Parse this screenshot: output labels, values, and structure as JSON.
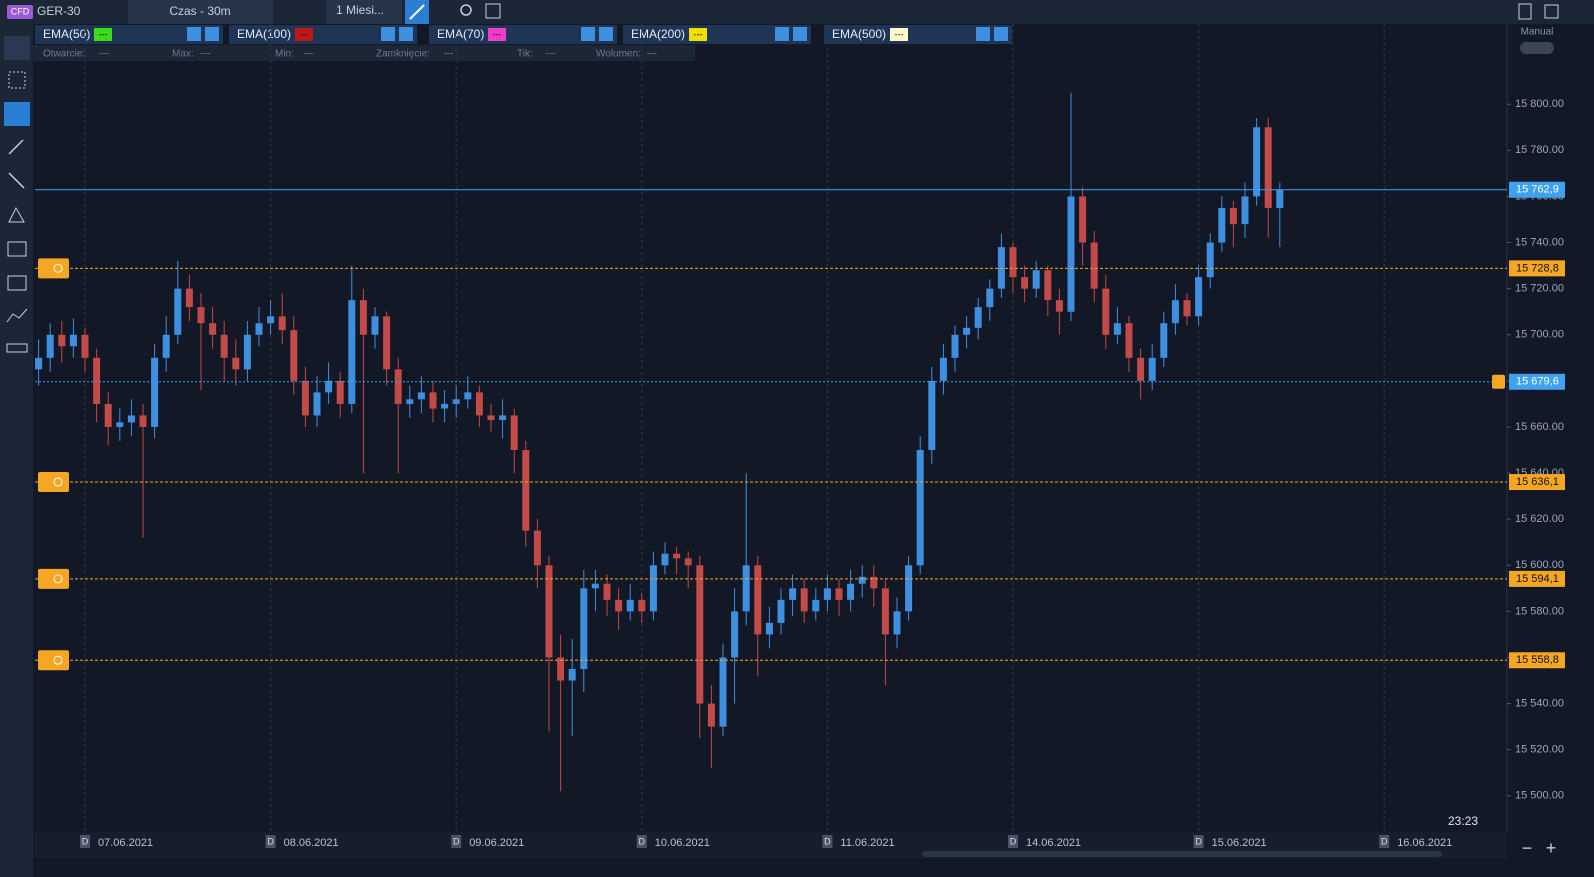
{
  "toolbar": {
    "badge": "CFD",
    "symbol": "GER-30",
    "interval": "Czas - 30m",
    "range": "1 Miesi..."
  },
  "indicators": [
    {
      "name": "EMA(50)",
      "value": "---",
      "color": "#3ddc1a"
    },
    {
      "name": "EMA(100)",
      "value": "---",
      "color": "#c01818"
    },
    {
      "name": "EMA(70)",
      "value": "---",
      "color": "#f03cc8"
    },
    {
      "name": "EMA(200)",
      "value": "---",
      "color": "#f0e000"
    },
    {
      "name": "EMA(500)",
      "value": "---",
      "color": "#fff8c8"
    }
  ],
  "info": [
    {
      "label": "Otwarcie:",
      "value": "---"
    },
    {
      "label": "Max:",
      "value": "---"
    },
    {
      "label": "Min:",
      "value": "---"
    },
    {
      "label": "Zamknięcie:",
      "value": "---"
    },
    {
      "label": "Tik:",
      "value": "---"
    },
    {
      "label": "Wolumen:",
      "value": "---"
    }
  ],
  "mode": "Manual",
  "clock": "23:23",
  "chart_data": {
    "type": "candlestick",
    "up_color": "#3f8fe0",
    "down_color": "#c24a48",
    "ylim": [
      15484.3,
      15834.8
    ],
    "yticks": [
      {
        "value": 15500,
        "label": "15 500.00"
      },
      {
        "value": 15520,
        "label": "15 520.00"
      },
      {
        "value": 15540,
        "label": "15 540.00"
      },
      {
        "value": 15560,
        "label": "15 560.00"
      },
      {
        "value": 15580,
        "label": "15 580.00"
      },
      {
        "value": 15600,
        "label": "15 600.00"
      },
      {
        "value": 15620,
        "label": "15 620.00"
      },
      {
        "value": 15640,
        "label": "15 640.00"
      },
      {
        "value": 15660,
        "label": "15 660.00"
      },
      {
        "value": 15680,
        "label": "15 680.00"
      },
      {
        "value": 15700,
        "label": "15 700.00"
      },
      {
        "value": 15720,
        "label": "15 720.00"
      },
      {
        "value": 15740,
        "label": "15 740.00"
      },
      {
        "value": 15760,
        "label": "15 760.00"
      },
      {
        "value": 15780,
        "label": "15 780.00"
      },
      {
        "value": 15800,
        "label": "15 800.00"
      }
    ],
    "dates": [
      "07.06.2021",
      "08.06.2021",
      "09.06.2021",
      "10.06.2021",
      "11.06.2021",
      "14.06.2021",
      "15.06.2021",
      "16.06.2021"
    ],
    "levels": [
      {
        "value": 15762.9,
        "label": "15 762,9",
        "style": "current"
      },
      {
        "value": 15728.8,
        "label": "15 728,8",
        "style": "alert"
      },
      {
        "value": 15679.6,
        "label": "15 679,6",
        "style": "pending"
      },
      {
        "value": 15636.1,
        "label": "15 636,1",
        "style": "alert"
      },
      {
        "value": 15594.1,
        "label": "15 594,1",
        "style": "alert"
      },
      {
        "value": 15558.8,
        "label": "15 558,8",
        "style": "alert"
      }
    ],
    "ohlc": [
      [
        15685,
        15698,
        15678,
        15690
      ],
      [
        15690,
        15705,
        15684,
        15700
      ],
      [
        15700,
        15706,
        15688,
        15695
      ],
      [
        15695,
        15707,
        15690,
        15700
      ],
      [
        15700,
        15703,
        15684,
        15690
      ],
      [
        15690,
        15694,
        15662,
        15670
      ],
      [
        15670,
        15675,
        15652,
        15660
      ],
      [
        15660,
        15668,
        15654,
        15662
      ],
      [
        15662,
        15672,
        15656,
        15665
      ],
      [
        15665,
        15670,
        15612,
        15660
      ],
      [
        15660,
        15696,
        15655,
        15690
      ],
      [
        15690,
        15708,
        15684,
        15700
      ],
      [
        15700,
        15732,
        15696,
        15720
      ],
      [
        15720,
        15726,
        15706,
        15712
      ],
      [
        15712,
        15718,
        15676,
        15705
      ],
      [
        15705,
        15712,
        15694,
        15700
      ],
      [
        15700,
        15706,
        15680,
        15690
      ],
      [
        15690,
        15698,
        15678,
        15685
      ],
      [
        15685,
        15706,
        15680,
        15700
      ],
      [
        15700,
        15712,
        15695,
        15705
      ],
      [
        15705,
        15715,
        15700,
        15708
      ],
      [
        15708,
        15718,
        15696,
        15702
      ],
      [
        15702,
        15708,
        15674,
        15680
      ],
      [
        15680,
        15686,
        15660,
        15665
      ],
      [
        15665,
        15682,
        15660,
        15675
      ],
      [
        15675,
        15688,
        15670,
        15680
      ],
      [
        15680,
        15684,
        15664,
        15670
      ],
      [
        15670,
        15730,
        15666,
        15715
      ],
      [
        15715,
        15720,
        15640,
        15700
      ],
      [
        15700,
        15712,
        15694,
        15708
      ],
      [
        15708,
        15710,
        15678,
        15685
      ],
      [
        15685,
        15690,
        15640,
        15670
      ],
      [
        15670,
        15678,
        15664,
        15672
      ],
      [
        15672,
        15682,
        15666,
        15675
      ],
      [
        15675,
        15680,
        15662,
        15668
      ],
      [
        15668,
        15676,
        15662,
        15670
      ],
      [
        15670,
        15678,
        15664,
        15672
      ],
      [
        15672,
        15682,
        15668,
        15675
      ],
      [
        15675,
        15678,
        15660,
        15665
      ],
      [
        15665,
        15670,
        15658,
        15663
      ],
      [
        15663,
        15672,
        15655,
        15665
      ],
      [
        15665,
        15668,
        15640,
        15650
      ],
      [
        15650,
        15654,
        15608,
        15615
      ],
      [
        15615,
        15620,
        15590,
        15600
      ],
      [
        15600,
        15604,
        15528,
        15560
      ],
      [
        15560,
        15570,
        15502,
        15550
      ],
      [
        15550,
        15568,
        15526,
        15555
      ],
      [
        15555,
        15598,
        15545,
        15590
      ],
      [
        15590,
        15598,
        15580,
        15592
      ],
      [
        15592,
        15596,
        15578,
        15585
      ],
      [
        15585,
        15590,
        15572,
        15580
      ],
      [
        15580,
        15592,
        15576,
        15585
      ],
      [
        15585,
        15588,
        15575,
        15580
      ],
      [
        15580,
        15606,
        15576,
        15600
      ],
      [
        15600,
        15610,
        15596,
        15605
      ],
      [
        15605,
        15608,
        15596,
        15603
      ],
      [
        15603,
        15606,
        15590,
        15600
      ],
      [
        15600,
        15604,
        15525,
        15540
      ],
      [
        15540,
        15548,
        15512,
        15530
      ],
      [
        15530,
        15566,
        15526,
        15560
      ],
      [
        15560,
        15590,
        15540,
        15580
      ],
      [
        15580,
        15640,
        15574,
        15600
      ],
      [
        15600,
        15604,
        15552,
        15570
      ],
      [
        15570,
        15582,
        15564,
        15575
      ],
      [
        15575,
        15590,
        15570,
        15585
      ],
      [
        15585,
        15596,
        15578,
        15590
      ],
      [
        15590,
        15594,
        15575,
        15580
      ],
      [
        15580,
        15590,
        15576,
        15585
      ],
      [
        15585,
        15596,
        15580,
        15590
      ],
      [
        15590,
        15594,
        15578,
        15585
      ],
      [
        15585,
        15598,
        15580,
        15592
      ],
      [
        15592,
        15600,
        15586,
        15595
      ],
      [
        15595,
        15600,
        15582,
        15590
      ],
      [
        15590,
        15594,
        15548,
        15570
      ],
      [
        15570,
        15586,
        15564,
        15580
      ],
      [
        15580,
        15604,
        15576,
        15600
      ],
      [
        15600,
        15656,
        15596,
        15650
      ],
      [
        15650,
        15686,
        15644,
        15680
      ],
      [
        15680,
        15696,
        15674,
        15690
      ],
      [
        15690,
        15704,
        15684,
        15700
      ],
      [
        15700,
        15708,
        15694,
        15703
      ],
      [
        15703,
        15716,
        15698,
        15712
      ],
      [
        15712,
        15724,
        15706,
        15720
      ],
      [
        15720,
        15744,
        15716,
        15738
      ],
      [
        15738,
        15740,
        15718,
        15725
      ],
      [
        15725,
        15730,
        15714,
        15720
      ],
      [
        15720,
        15732,
        15716,
        15728
      ],
      [
        15728,
        15730,
        15708,
        15715
      ],
      [
        15715,
        15720,
        15700,
        15710
      ],
      [
        15710,
        15805,
        15706,
        15760
      ],
      [
        15760,
        15764,
        15730,
        15740
      ],
      [
        15740,
        15745,
        15714,
        15720
      ],
      [
        15720,
        15726,
        15694,
        15700
      ],
      [
        15700,
        15712,
        15696,
        15705
      ],
      [
        15705,
        15708,
        15684,
        15690
      ],
      [
        15690,
        15694,
        15672,
        15680
      ],
      [
        15680,
        15696,
        15676,
        15690
      ],
      [
        15690,
        15710,
        15686,
        15705
      ],
      [
        15705,
        15722,
        15700,
        15715
      ],
      [
        15715,
        15718,
        15704,
        15708
      ],
      [
        15708,
        15730,
        15704,
        15725
      ],
      [
        15725,
        15744,
        15720,
        15740
      ],
      [
        15740,
        15760,
        15736,
        15755
      ],
      [
        15755,
        15758,
        15738,
        15748
      ],
      [
        15748,
        15766,
        15742,
        15760
      ],
      [
        15760,
        15794,
        15756,
        15790
      ],
      [
        15790,
        15794,
        15742,
        15755
      ],
      [
        15755,
        15766,
        15738,
        15762.9
      ]
    ]
  }
}
